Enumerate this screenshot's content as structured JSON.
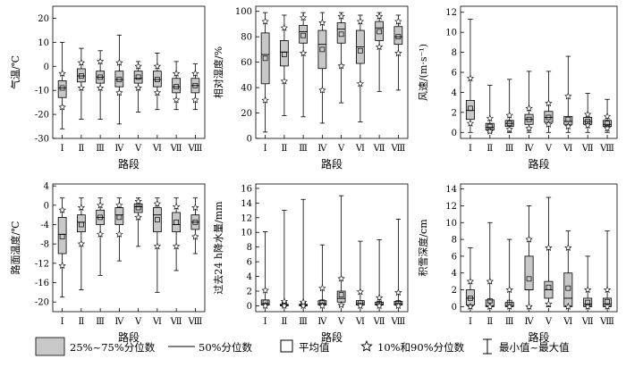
{
  "chart_data": [
    {
      "type": "box",
      "ylabel": "气温/℃",
      "xlabel": "路段",
      "ylim": [
        -30,
        25
      ],
      "yticks": [
        -30,
        -20,
        -10,
        0,
        10,
        20
      ],
      "categories": [
        "Ⅰ",
        "Ⅱ",
        "Ⅲ",
        "Ⅳ",
        "Ⅴ",
        "Ⅵ",
        "Ⅶ",
        "Ⅷ"
      ],
      "boxes": [
        {
          "min": -26,
          "p10": -17,
          "q1": -13,
          "median": -9,
          "q3": -6,
          "p90": -3,
          "max": 10,
          "mean": -9
        },
        {
          "min": -22,
          "p10": -9,
          "q1": -6.5,
          "median": -4,
          "q3": -1,
          "p90": 1.5,
          "max": 7.5,
          "mean": -4
        },
        {
          "min": -22,
          "p10": -9,
          "q1": -7,
          "median": -4.5,
          "q3": -2,
          "p90": 2,
          "max": 6.5,
          "mean": -4.5
        },
        {
          "min": -24,
          "p10": -11,
          "q1": -8.5,
          "median": -5.5,
          "q3": -2,
          "p90": 1.5,
          "max": 13,
          "mean": -5.5
        },
        {
          "min": -19,
          "p10": -9,
          "q1": -7,
          "median": -5,
          "q3": -2,
          "p90": 0,
          "max": 2,
          "mean": -4.5
        },
        {
          "min": -18,
          "p10": -11,
          "q1": -8.5,
          "median": -5.5,
          "q3": -2,
          "p90": 0,
          "max": 5.5,
          "mean": -5.5
        },
        {
          "min": -18,
          "p10": -14,
          "q1": -11,
          "median": -8.5,
          "q3": -5,
          "p90": -3,
          "max": 2,
          "mean": -8.5
        },
        {
          "min": -18,
          "p10": -14,
          "q1": -11,
          "median": -8,
          "q3": -5,
          "p90": -3,
          "max": 1,
          "mean": -8
        }
      ]
    },
    {
      "type": "box",
      "ylabel": "相对湿度/%",
      "xlabel": "路段",
      "ylim": [
        0,
        104
      ],
      "yticks": [
        0,
        20,
        40,
        60,
        80,
        100
      ],
      "categories": [
        "Ⅰ",
        "Ⅱ",
        "Ⅲ",
        "Ⅳ",
        "Ⅴ",
        "Ⅵ",
        "Ⅶ",
        "Ⅷ"
      ],
      "boxes": [
        {
          "min": 5,
          "p10": 30,
          "q1": 43,
          "median": 66,
          "q3": 83,
          "p90": 92,
          "max": 99,
          "mean": 63
        },
        {
          "min": 18,
          "p10": 45,
          "q1": 57,
          "median": 68,
          "q3": 77,
          "p90": 87,
          "max": 97,
          "mean": 66
        },
        {
          "min": 17,
          "p10": 67,
          "q1": 75,
          "median": 84,
          "q3": 89,
          "p90": 95,
          "max": 99,
          "mean": 81
        },
        {
          "min": 12,
          "p10": 38,
          "q1": 55,
          "median": 74,
          "q3": 85,
          "p90": 91,
          "max": 99,
          "mean": 70
        },
        {
          "min": 28,
          "p10": 57,
          "q1": 75,
          "median": 86,
          "q3": 91,
          "p90": 96,
          "max": 99,
          "mean": 82
        },
        {
          "min": 13,
          "p10": 43,
          "q1": 59,
          "median": 72,
          "q3": 85,
          "p90": 92,
          "max": 97,
          "mean": 69
        },
        {
          "min": 37,
          "p10": 72,
          "q1": 77,
          "median": 87,
          "q3": 92,
          "p90": 96,
          "max": 99,
          "mean": 84
        },
        {
          "min": 38,
          "p10": 67,
          "q1": 74,
          "median": 80,
          "q3": 88,
          "p90": 92,
          "max": 97,
          "mean": 80
        }
      ]
    },
    {
      "type": "box",
      "ylabel": "风速/(m·s⁻¹)",
      "xlabel": "路段",
      "ylim": [
        -0.6,
        12.6
      ],
      "yticks": [
        0,
        2,
        4,
        6,
        8,
        10,
        12
      ],
      "categories": [
        "Ⅰ",
        "Ⅱ",
        "Ⅲ",
        "Ⅳ",
        "Ⅴ",
        "Ⅵ",
        "Ⅶ",
        "Ⅷ"
      ],
      "boxes": [
        {
          "min": 0,
          "p10": 0.9,
          "q1": 1.3,
          "median": 2.2,
          "q3": 3.2,
          "p90": 5.4,
          "max": 11.3,
          "mean": 2.4
        },
        {
          "min": 0,
          "p10": 0.1,
          "q1": 0.25,
          "median": 0.5,
          "q3": 0.9,
          "p90": 1.4,
          "max": 4.7,
          "mean": 0.6
        },
        {
          "min": 0,
          "p10": 0.3,
          "q1": 0.6,
          "median": 0.9,
          "q3": 1.2,
          "p90": 1.7,
          "max": 5.3,
          "mean": 0.9
        },
        {
          "min": 0,
          "p10": 0.4,
          "q1": 0.8,
          "median": 1.3,
          "q3": 1.8,
          "p90": 2.4,
          "max": 6.1,
          "mean": 1.3
        },
        {
          "min": 0,
          "p10": 0.8,
          "q1": 1.0,
          "median": 1.5,
          "q3": 2.1,
          "p90": 2.9,
          "max": 6.1,
          "mean": 1.5
        },
        {
          "min": 0,
          "p10": 0.6,
          "q1": 0.8,
          "median": 1.1,
          "q3": 1.6,
          "p90": 3.6,
          "max": 7.6,
          "mean": 1.3
        },
        {
          "min": 0,
          "p10": 0.7,
          "q1": 0.8,
          "median": 1.1,
          "q3": 1.5,
          "p90": 1.8,
          "max": 3.9,
          "mean": 1.1
        },
        {
          "min": 0,
          "p10": 0.4,
          "q1": 0.6,
          "median": 0.8,
          "q3": 1.2,
          "p90": 1.6,
          "max": 3.3,
          "mean": 0.9
        }
      ]
    },
    {
      "type": "box",
      "ylabel": "路面温度/℃",
      "xlabel": "路段",
      "ylim": [
        -22,
        4.4
      ],
      "yticks": [
        -20,
        -16,
        -12,
        -8,
        -4,
        0,
        4
      ],
      "categories": [
        "Ⅰ",
        "Ⅱ",
        "Ⅲ",
        "Ⅳ",
        "Ⅴ",
        "Ⅵ",
        "Ⅶ",
        "Ⅷ"
      ],
      "boxes": [
        {
          "min": -19,
          "p10": -12.5,
          "q1": -10,
          "median": -6,
          "q3": -2.5,
          "p90": -1,
          "max": 1.5,
          "mean": -6.5
        },
        {
          "min": -17.5,
          "p10": -8,
          "q1": -5.5,
          "median": -3.5,
          "q3": -2,
          "p90": -0.5,
          "max": 1.5,
          "mean": -4
        },
        {
          "min": -14.5,
          "p10": -6,
          "q1": -4,
          "median": -2.5,
          "q3": -1,
          "p90": 0,
          "max": 1.5,
          "mean": -2.5
        },
        {
          "min": -11.5,
          "p10": -6,
          "q1": -4,
          "median": -2,
          "q3": -0.5,
          "p90": 0,
          "max": 1.5,
          "mean": -2.5
        },
        {
          "min": -8.5,
          "p10": -2.5,
          "q1": -1.5,
          "median": -0.3,
          "q3": 0.3,
          "p90": 0.8,
          "max": 1.5,
          "mean": -0.5
        },
        {
          "min": -18,
          "p10": -8.5,
          "q1": -5.5,
          "median": -2,
          "q3": -0.5,
          "p90": 0.3,
          "max": 1.5,
          "mean": -3
        },
        {
          "min": -13.5,
          "p10": -8.5,
          "q1": -5.5,
          "median": -4,
          "q3": -1.5,
          "p90": -0.3,
          "max": 1.5,
          "mean": -3.5
        },
        {
          "min": -10,
          "p10": -6.5,
          "q1": -5,
          "median": -3.5,
          "q3": -2,
          "p90": -0.5,
          "max": 1.5,
          "mean": -3.5
        }
      ]
    },
    {
      "type": "box",
      "ylabel": "过去24 h降水量/mm",
      "xlabel": "路段",
      "ylim": [
        -0.8,
        16.6
      ],
      "yticks": [
        0,
        2,
        4,
        6,
        8,
        10,
        12,
        14,
        16
      ],
      "categories": [
        "Ⅰ",
        "Ⅱ",
        "Ⅲ",
        "Ⅳ",
        "Ⅴ",
        "Ⅵ",
        "Ⅶ",
        "Ⅷ"
      ],
      "boxes": [
        {
          "min": 0,
          "p10": 0,
          "q1": 0.1,
          "median": 0.3,
          "q3": 0.8,
          "p90": 2.1,
          "max": 10.1,
          "mean": 0.5
        },
        {
          "min": 0,
          "p10": 0,
          "q1": 0,
          "median": 0.1,
          "q3": 0.2,
          "p90": 0.6,
          "max": 13,
          "mean": 0.2
        },
        {
          "min": 0,
          "p10": 0,
          "q1": 0,
          "median": 0.1,
          "q3": 0.2,
          "p90": 0.5,
          "max": 14.5,
          "mean": 0.2
        },
        {
          "min": 0,
          "p10": 0,
          "q1": 0.1,
          "median": 0.3,
          "q3": 0.7,
          "p90": 2.4,
          "max": 8.3,
          "mean": 0.5
        },
        {
          "min": 0,
          "p10": 0.1,
          "q1": 0.5,
          "median": 1.0,
          "q3": 2.0,
          "p90": 3.7,
          "max": 15,
          "mean": 1.5
        },
        {
          "min": 0,
          "p10": 0,
          "q1": 0.1,
          "median": 0.3,
          "q3": 0.7,
          "p90": 1.9,
          "max": 8.8,
          "mean": 0.4
        },
        {
          "min": 0,
          "p10": 0,
          "q1": 0.1,
          "median": 0.2,
          "q3": 0.5,
          "p90": 1.1,
          "max": 9,
          "mean": 0.3
        },
        {
          "min": 0,
          "p10": 0,
          "q1": 0.1,
          "median": 0.3,
          "q3": 0.6,
          "p90": 1.8,
          "max": 11.8,
          "mean": 0.4
        }
      ]
    },
    {
      "type": "box",
      "ylabel": "积雪深度/cm",
      "xlabel": "路段",
      "ylim": [
        -0.6,
        14.6
      ],
      "yticks": [
        0,
        2,
        4,
        6,
        8,
        10,
        12,
        14
      ],
      "categories": [
        "Ⅰ",
        "Ⅱ",
        "Ⅲ",
        "Ⅳ",
        "Ⅴ",
        "Ⅵ",
        "Ⅶ",
        "Ⅷ"
      ],
      "boxes": [
        {
          "min": 0,
          "p10": 0,
          "q1": 0.2,
          "median": 1.0,
          "q3": 2.0,
          "p90": 3.0,
          "max": 7.0,
          "mean": 1.0
        },
        {
          "min": 0,
          "p10": 0,
          "q1": 0,
          "median": 0.1,
          "q3": 0.8,
          "p90": 3.0,
          "max": 10.0,
          "mean": 0.7
        },
        {
          "min": 0,
          "p10": 0,
          "q1": 0,
          "median": 0.1,
          "q3": 0.5,
          "p90": 2.0,
          "max": 8.0,
          "mean": 0.5
        },
        {
          "min": 0,
          "p10": 0,
          "q1": 2.0,
          "median": 2.0,
          "q3": 6.0,
          "p90": 8.0,
          "max": 12.0,
          "mean": 3.3
        },
        {
          "min": 0,
          "p10": 0.3,
          "q1": 1.0,
          "median": 2.0,
          "q3": 3.0,
          "p90": 7.0,
          "max": 13.0,
          "mean": 2.3
        },
        {
          "min": 0,
          "p10": 0,
          "q1": 0,
          "median": 1.0,
          "q3": 4.0,
          "p90": 7.0,
          "max": 9.0,
          "mean": 2.2
        },
        {
          "min": 0,
          "p10": 0,
          "q1": 0,
          "median": 0.3,
          "q3": 1.0,
          "p90": 2.0,
          "max": 6.0,
          "mean": 0.5
        },
        {
          "min": 0,
          "p10": 0,
          "q1": 0,
          "median": 0.3,
          "q3": 1.0,
          "p90": 2.0,
          "max": 9.0,
          "mean": 0.6
        }
      ]
    }
  ],
  "legend": {
    "box_label": "25%~75%分位数",
    "median_label": "50%分位数",
    "mean_label": "平均值",
    "percentile_label": "10%和90%分位数",
    "range_label": "最小值~最大值"
  },
  "colors": {
    "box_fill": "#c8c8c8",
    "stroke": "#000000"
  }
}
